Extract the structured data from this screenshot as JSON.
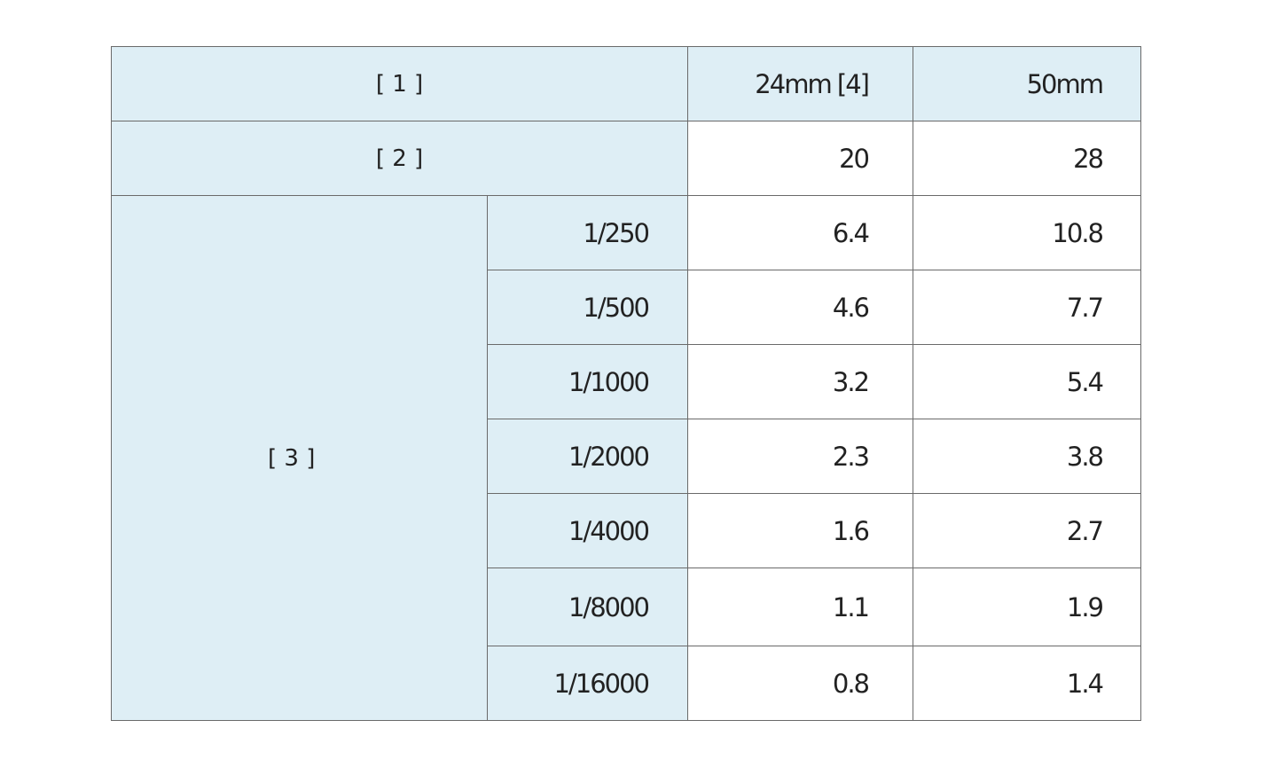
{
  "header": {
    "label": "[ 1 ]",
    "col_24mm": "24mm [4]",
    "col_50mm": "50mm"
  },
  "row2": {
    "label": "[ 2 ]",
    "v24": "20",
    "v50": "28"
  },
  "group3": {
    "label": "[ 3 ]"
  },
  "rows": [
    {
      "shutter": "1/250",
      "v24": "6.4",
      "v50": "10.8"
    },
    {
      "shutter": "1/500",
      "v24": "4.6",
      "v50": "7.7"
    },
    {
      "shutter": "1/1000",
      "v24": "3.2",
      "v50": "5.4"
    },
    {
      "shutter": "1/2000",
      "v24": "2.3",
      "v50": "3.8"
    },
    {
      "shutter": "1/4000",
      "v24": "1.6",
      "v50": "2.7"
    },
    {
      "shutter": "1/8000",
      "v24": "1.1",
      "v50": "1.9"
    },
    {
      "shutter": "1/16000",
      "v24": "0.8",
      "v50": "1.4"
    }
  ],
  "colors": {
    "header_bg": "#deeef5",
    "border": "#6a6a6a"
  }
}
